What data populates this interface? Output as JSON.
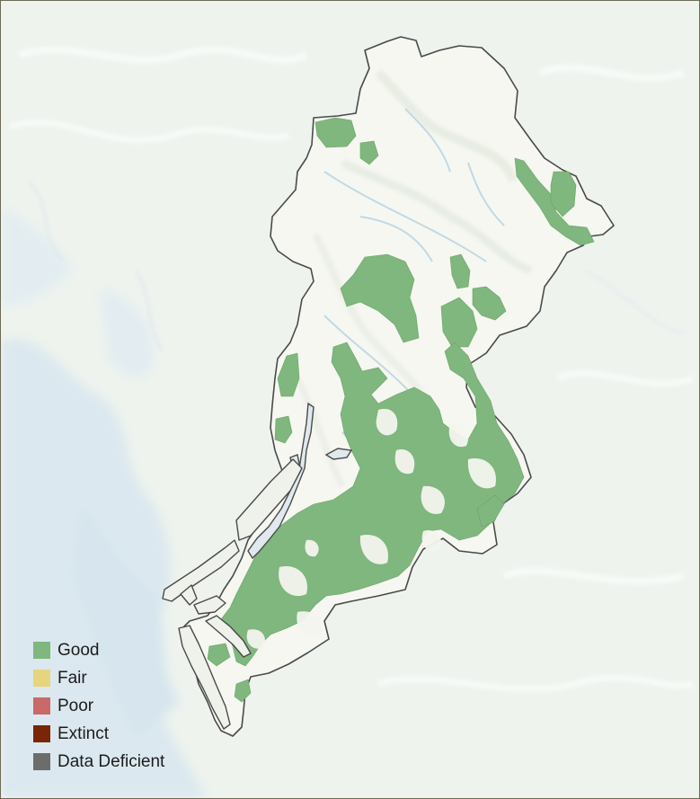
{
  "legend": {
    "items": [
      {
        "label": "Good",
        "color": "#7fb77e"
      },
      {
        "label": "Fair",
        "color": "#e6d57e"
      },
      {
        "label": "Poor",
        "color": "#c86a67"
      },
      {
        "label": "Extinct",
        "color": "#7a2505"
      },
      {
        "label": "Data Deficient",
        "color": "#6c6c6c"
      }
    ]
  },
  "colors": {
    "ocean": "#dfeaf0",
    "land": "#eef3ee",
    "terrain": "#f4f6f1",
    "boundary": "#4a4a4a",
    "good_habitat": "#7fb77e"
  }
}
